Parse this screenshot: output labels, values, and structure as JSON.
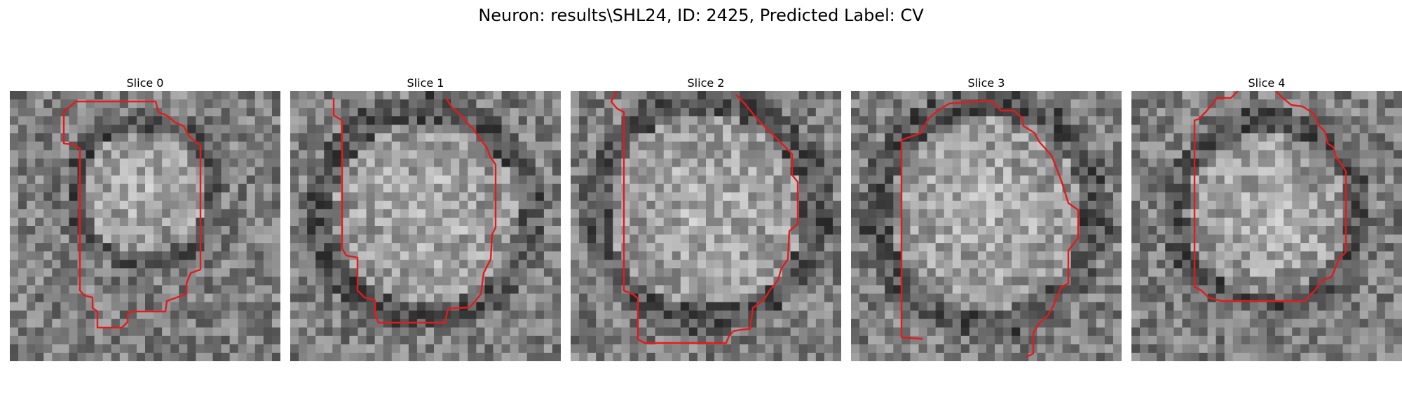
{
  "figure": {
    "title": "Neuron: results\\SHL24, ID: 2425, Predicted Label: CV",
    "slices": [
      {
        "label": "Slice 0"
      },
      {
        "label": "Slice 1"
      },
      {
        "label": "Slice 2"
      },
      {
        "label": "Slice 3"
      },
      {
        "label": "Slice 4"
      }
    ],
    "contour_color": "#e41a1c"
  }
}
